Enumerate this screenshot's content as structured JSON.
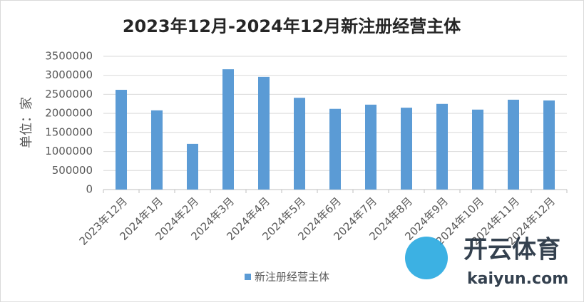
{
  "chart_data": {
    "type": "bar",
    "title": "2023年12月-2024年12月新注册经营主体",
    "y_label": "单位：家",
    "categories": [
      "2023年12月",
      "2024年1月",
      "2024年2月",
      "2024年3月",
      "2024年4月",
      "2024年5月",
      "2024年6月",
      "2024年7月",
      "2024年8月",
      "2024年9月",
      "2024年10月",
      "2024年11月",
      "2024年12月"
    ],
    "series": [
      {
        "name": "新注册经营主体",
        "color": "#5b9bd5",
        "values": [
          2620000,
          2080000,
          1200000,
          3160000,
          2960000,
          2410000,
          2120000,
          2230000,
          2150000,
          2250000,
          2100000,
          2360000,
          2340000
        ]
      }
    ],
    "ylim": [
      0,
      3500000
    ],
    "yticks": [
      0,
      500000,
      1000000,
      1500000,
      2000000,
      2500000,
      3000000,
      3500000
    ],
    "grid": true,
    "legend": "bottom"
  },
  "watermark": {
    "brand": "开云体育",
    "url": "kaiyun.com"
  }
}
